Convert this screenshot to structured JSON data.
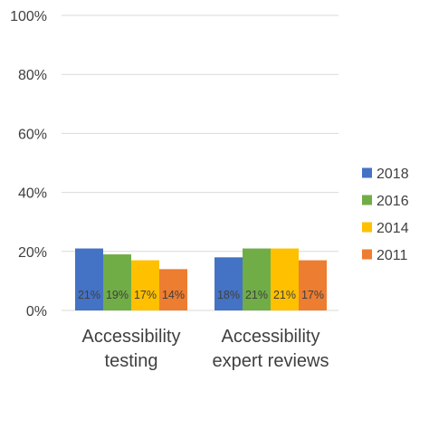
{
  "chart_data": {
    "type": "bar",
    "categories": [
      [
        "Accessibility",
        "testing"
      ],
      [
        "Accessibility",
        "expert reviews"
      ]
    ],
    "series": [
      {
        "name": "2018",
        "color": "#4472C4",
        "values": [
          21,
          18
        ],
        "labels": [
          "21%",
          "18%"
        ]
      },
      {
        "name": "2016",
        "color": "#70AD47",
        "values": [
          19,
          21
        ],
        "labels": [
          "19%",
          "21%"
        ]
      },
      {
        "name": "2014",
        "color": "#FFC000",
        "values": [
          17,
          21
        ],
        "labels": [
          "17%",
          "21%"
        ]
      },
      {
        "name": "2011",
        "color": "#ED7D31",
        "values": [
          14,
          17
        ],
        "labels": [
          "14%",
          "17%"
        ]
      }
    ],
    "ylim": [
      0,
      100
    ],
    "yticks": [
      0,
      20,
      40,
      60,
      80,
      100
    ],
    "ytick_labels": [
      "0%",
      "20%",
      "40%",
      "60%",
      "80%",
      "100%"
    ],
    "grid": true,
    "legend_position": "right",
    "title": "",
    "xlabel": "",
    "ylabel": ""
  }
}
